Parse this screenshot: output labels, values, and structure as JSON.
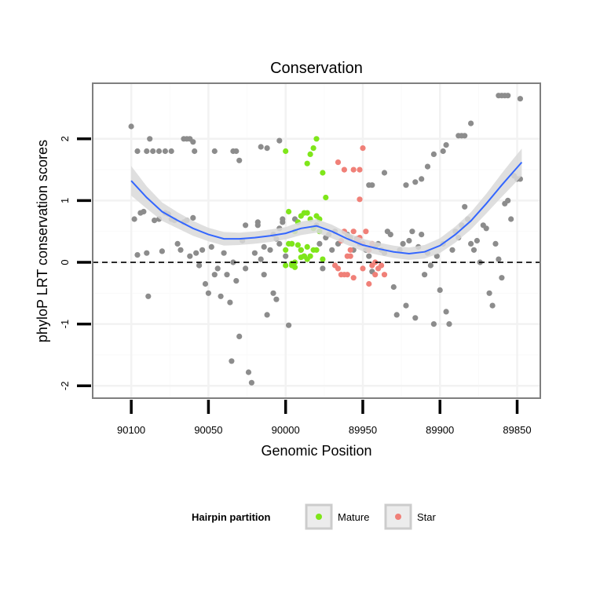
{
  "chart_data": {
    "type": "scatter",
    "title": "Conservation",
    "xlabel": "Genomic Position",
    "ylabel": "phyloP LRT conservation scores",
    "xlim": [
      90125,
      89835
    ],
    "ylim": [
      -2.2,
      2.9
    ],
    "x_reversed": true,
    "x_ticks": [
      {
        "value": 90100,
        "label": "90100"
      },
      {
        "value": 90050,
        "label": "90050"
      },
      {
        "value": 90000,
        "label": "90000"
      },
      {
        "value": 89950,
        "label": "89950"
      },
      {
        "value": 89900,
        "label": "89900"
      },
      {
        "value": 89850,
        "label": "89850"
      }
    ],
    "y_ticks": [
      {
        "value": -2,
        "label": "-2"
      },
      {
        "value": -1,
        "label": "-1"
      },
      {
        "value": 0,
        "label": "0"
      },
      {
        "value": 1,
        "label": "1"
      },
      {
        "value": 2,
        "label": "2"
      }
    ],
    "grid": true,
    "reference_line": {
      "y": 0,
      "style": "dashed"
    },
    "legend": {
      "title": "Hairpin partition",
      "position": "bottom",
      "entries": [
        {
          "label": "Mature",
          "color": "#7fe61a"
        },
        {
          "label": "Star",
          "color": "#f08078"
        }
      ]
    },
    "colors": {
      "other": "#8c8c8c",
      "Mature": "#7fe61a",
      "Star": "#f08078",
      "smooth_line": "#3366ff",
      "smooth_band": "#d9d9d9"
    },
    "series": [
      {
        "name": "",
        "group": "other",
        "points": [
          [
            90100,
            2.2
          ],
          [
            90096,
            1.8
          ],
          [
            90090,
            1.8
          ],
          [
            90088,
            2.0
          ],
          [
            90086,
            1.8
          ],
          [
            90082,
            1.8
          ],
          [
            90078,
            1.8
          ],
          [
            90074,
            1.8
          ],
          [
            90066,
            2.0
          ],
          [
            90064,
            2.0
          ],
          [
            90062,
            2.0
          ],
          [
            90060,
            1.95
          ],
          [
            90059,
            1.8
          ],
          [
            90046,
            1.8
          ],
          [
            90034,
            1.8
          ],
          [
            90032,
            1.8
          ],
          [
            90030,
            1.65
          ],
          [
            90016,
            1.87
          ],
          [
            90012,
            1.85
          ],
          [
            90004,
            1.97
          ],
          [
            90098,
            0.7
          ],
          [
            90096,
            0.12
          ],
          [
            90094,
            0.8
          ],
          [
            90092,
            0.82
          ],
          [
            90090,
            0.15
          ],
          [
            90089,
            -0.55
          ],
          [
            90085,
            0.68
          ],
          [
            90082,
            0.7
          ],
          [
            90080,
            0.18
          ],
          [
            90078,
            0.8
          ],
          [
            90076,
            0.78
          ],
          [
            90074,
            0.7
          ],
          [
            90072,
            0.68
          ],
          [
            90070,
            0.3
          ],
          [
            90068,
            0.2
          ],
          [
            90066,
            0.65
          ],
          [
            90064,
            0.68
          ],
          [
            90062,
            0.1
          ],
          [
            90060,
            0.72
          ],
          [
            90058,
            0.15
          ],
          [
            90056,
            -0.05
          ],
          [
            90054,
            0.2
          ],
          [
            90052,
            -0.35
          ],
          [
            90050,
            -0.5
          ],
          [
            90048,
            0.25
          ],
          [
            90046,
            -0.2
          ],
          [
            90044,
            -0.1
          ],
          [
            90042,
            -0.55
          ],
          [
            90040,
            0.15
          ],
          [
            90038,
            -0.2
          ],
          [
            90036,
            -0.65
          ],
          [
            90035,
            -1.6
          ],
          [
            90034,
            0.0
          ],
          [
            90032,
            -0.3
          ],
          [
            90030,
            -1.2
          ],
          [
            90028,
            0.35
          ],
          [
            90026,
            -0.1
          ],
          [
            90024,
            -1.78
          ],
          [
            90022,
            -1.95
          ],
          [
            90020,
            0.15
          ],
          [
            90018,
            0.6
          ],
          [
            90016,
            0.05
          ],
          [
            90014,
            -0.2
          ],
          [
            90012,
            -0.85
          ],
          [
            90010,
            0.2
          ],
          [
            90008,
            -0.5
          ],
          [
            90006,
            -0.6
          ],
          [
            90004,
            0.3
          ],
          [
            90002,
            0.65
          ],
          [
            90000,
            0.1
          ],
          [
            89998,
            -1.02
          ],
          [
            89996,
            0.3
          ],
          [
            89994,
            0.7
          ],
          [
            89992,
            0.65
          ],
          [
            89990,
            0.2
          ],
          [
            89988,
            0.1
          ],
          [
            90026,
            0.6
          ],
          [
            90018,
            0.65
          ],
          [
            90014,
            0.25
          ],
          [
            90008,
            0.45
          ],
          [
            90006,
            0.38
          ],
          [
            90004,
            0.55
          ],
          [
            90002,
            0.7
          ],
          [
            89980,
            0.6
          ],
          [
            89978,
            0.3
          ],
          [
            89976,
            -0.1
          ],
          [
            89974,
            0.4
          ],
          [
            89972,
            0.45
          ],
          [
            89970,
            0.2
          ],
          [
            89968,
            0.5
          ],
          [
            89966,
            0.3
          ],
          [
            89960,
            0.45
          ],
          [
            89958,
            0.4
          ],
          [
            89956,
            0.2
          ],
          [
            89954,
            0.38
          ],
          [
            89952,
            0.3
          ],
          [
            89948,
            0.2
          ],
          [
            89946,
            0.1
          ],
          [
            89944,
            -0.15
          ],
          [
            89942,
            0.25
          ],
          [
            89940,
            0.3
          ],
          [
            89938,
            0.2
          ],
          [
            89936,
            0.15
          ],
          [
            89934,
            0.5
          ],
          [
            89932,
            0.45
          ],
          [
            89930,
            -0.4
          ],
          [
            89928,
            -0.85
          ],
          [
            89926,
            0.2
          ],
          [
            89924,
            0.3
          ],
          [
            89922,
            -0.7
          ],
          [
            89920,
            0.35
          ],
          [
            89918,
            0.5
          ],
          [
            89916,
            -0.9
          ],
          [
            89914,
            0.25
          ],
          [
            89912,
            0.45
          ],
          [
            89910,
            -0.2
          ],
          [
            89908,
            0.15
          ],
          [
            89906,
            -0.05
          ],
          [
            89904,
            -1.0
          ],
          [
            89902,
            0.1
          ],
          [
            89900,
            -0.45
          ],
          [
            89898,
            0.3
          ],
          [
            89896,
            -0.8
          ],
          [
            89894,
            -1.0
          ],
          [
            89892,
            0.2
          ],
          [
            89890,
            0.5
          ],
          [
            89888,
            0.4
          ],
          [
            89886,
            0.6
          ],
          [
            89884,
            0.9
          ],
          [
            89882,
            0.7
          ],
          [
            89880,
            0.3
          ],
          [
            89878,
            0.2
          ],
          [
            89876,
            0.35
          ],
          [
            89874,
            0.0
          ],
          [
            89872,
            0.6
          ],
          [
            89870,
            0.55
          ],
          [
            89868,
            -0.5
          ],
          [
            89866,
            -0.7
          ],
          [
            89864,
            0.3
          ],
          [
            89862,
            0.05
          ],
          [
            89860,
            -0.25
          ],
          [
            89858,
            0.95
          ],
          [
            89856,
            1.0
          ],
          [
            89854,
            0.7
          ],
          [
            89852,
            1.4
          ],
          [
            89850,
            1.35
          ],
          [
            89848,
            1.35
          ],
          [
            89946,
            1.25
          ],
          [
            89944,
            1.25
          ],
          [
            89936,
            1.45
          ],
          [
            89922,
            1.25
          ],
          [
            89916,
            1.3
          ],
          [
            89912,
            1.35
          ],
          [
            89908,
            1.55
          ],
          [
            89904,
            1.75
          ],
          [
            89898,
            1.8
          ],
          [
            89896,
            1.9
          ],
          [
            89888,
            2.05
          ],
          [
            89886,
            2.05
          ],
          [
            89884,
            2.05
          ],
          [
            89880,
            2.25
          ],
          [
            89862,
            2.7
          ],
          [
            89860,
            2.7
          ],
          [
            89858,
            2.7
          ],
          [
            89856,
            2.7
          ],
          [
            89848,
            2.65
          ]
        ]
      },
      {
        "name": "Mature",
        "group": "Mature",
        "points": [
          [
            90000,
            1.8
          ],
          [
            89998,
            0.82
          ],
          [
            89986,
            1.6
          ],
          [
            89984,
            1.75
          ],
          [
            89982,
            1.85
          ],
          [
            89980,
            2.0
          ],
          [
            89976,
            1.45
          ],
          [
            89974,
            1.05
          ],
          [
            89978,
            0.7
          ],
          [
            89980,
            0.75
          ],
          [
            89982,
            0.55
          ],
          [
            89984,
            0.7
          ],
          [
            89986,
            0.8
          ],
          [
            89988,
            0.8
          ],
          [
            89990,
            0.75
          ],
          [
            89992,
            0.65
          ],
          [
            89994,
            0.5
          ],
          [
            89996,
            0.3
          ],
          [
            89998,
            0.3
          ],
          [
            90000,
            0.2
          ],
          [
            89990,
            0.2
          ],
          [
            89988,
            0.1
          ],
          [
            89986,
            0.05
          ],
          [
            89984,
            0.1
          ],
          [
            89982,
            0.2
          ],
          [
            89978,
            0.5
          ],
          [
            89976,
            0.05
          ],
          [
            89994,
            0.0
          ],
          [
            89996,
            -0.02
          ],
          [
            90000,
            -0.05
          ],
          [
            89996,
            -0.05
          ],
          [
            89994,
            -0.08
          ],
          [
            89990,
            0.08
          ],
          [
            89986,
            0.25
          ],
          [
            89980,
            0.2
          ],
          [
            89992,
            0.28
          ]
        ]
      },
      {
        "name": "Star",
        "group": "Star",
        "points": [
          [
            89962,
            1.5
          ],
          [
            89956,
            1.5
          ],
          [
            89952,
            1.5
          ],
          [
            89966,
            1.62
          ],
          [
            89950,
            1.85
          ],
          [
            89952,
            1.02
          ],
          [
            89968,
            -0.05
          ],
          [
            89966,
            -0.1
          ],
          [
            89964,
            -0.2
          ],
          [
            89962,
            -0.2
          ],
          [
            89960,
            0.1
          ],
          [
            89958,
            0.2
          ],
          [
            89956,
            0.5
          ],
          [
            89954,
            0.35
          ],
          [
            89952,
            0.4
          ],
          [
            89950,
            0.3
          ],
          [
            89948,
            0.5
          ],
          [
            89946,
            0.2
          ],
          [
            89944,
            0.3
          ],
          [
            89942,
            0.0
          ],
          [
            89940,
            -0.1
          ],
          [
            89938,
            -0.05
          ],
          [
            89936,
            -0.2
          ],
          [
            89964,
            0.35
          ],
          [
            89962,
            0.5
          ],
          [
            89958,
            0.1
          ],
          [
            89950,
            -0.1
          ],
          [
            89946,
            -0.35
          ],
          [
            89944,
            -0.05
          ],
          [
            89942,
            -0.2
          ],
          [
            89960,
            -0.2
          ],
          [
            89956,
            -0.25
          ]
        ]
      }
    ],
    "smooth_curve": [
      [
        90100,
        1.32
      ],
      [
        90090,
        1.05
      ],
      [
        90080,
        0.82
      ],
      [
        90070,
        0.68
      ],
      [
        90060,
        0.55
      ],
      [
        90050,
        0.45
      ],
      [
        90040,
        0.38
      ],
      [
        90030,
        0.38
      ],
      [
        90020,
        0.4
      ],
      [
        90010,
        0.43
      ],
      [
        90000,
        0.47
      ],
      [
        89990,
        0.55
      ],
      [
        89980,
        0.59
      ],
      [
        89970,
        0.5
      ],
      [
        89960,
        0.38
      ],
      [
        89950,
        0.28
      ],
      [
        89940,
        0.22
      ],
      [
        89930,
        0.17
      ],
      [
        89920,
        0.14
      ],
      [
        89910,
        0.17
      ],
      [
        89900,
        0.27
      ],
      [
        89890,
        0.45
      ],
      [
        89880,
        0.67
      ],
      [
        89870,
        0.95
      ],
      [
        89860,
        1.25
      ],
      [
        89853,
        1.45
      ],
      [
        89847,
        1.62
      ]
    ],
    "smooth_band_halfwidth": [
      [
        90100,
        0.24
      ],
      [
        90090,
        0.18
      ],
      [
        90080,
        0.15
      ],
      [
        90070,
        0.13
      ],
      [
        90060,
        0.12
      ],
      [
        90050,
        0.11
      ],
      [
        90040,
        0.11
      ],
      [
        90030,
        0.1
      ],
      [
        90020,
        0.1
      ],
      [
        90010,
        0.1
      ],
      [
        90000,
        0.1
      ],
      [
        89990,
        0.11
      ],
      [
        89980,
        0.11
      ],
      [
        89970,
        0.11
      ],
      [
        89960,
        0.1
      ],
      [
        89950,
        0.1
      ],
      [
        89940,
        0.1
      ],
      [
        89930,
        0.1
      ],
      [
        89920,
        0.1
      ],
      [
        89910,
        0.11
      ],
      [
        89900,
        0.12
      ],
      [
        89890,
        0.13
      ],
      [
        89880,
        0.14
      ],
      [
        89870,
        0.16
      ],
      [
        89860,
        0.19
      ],
      [
        89853,
        0.21
      ],
      [
        89847,
        0.22
      ]
    ]
  }
}
